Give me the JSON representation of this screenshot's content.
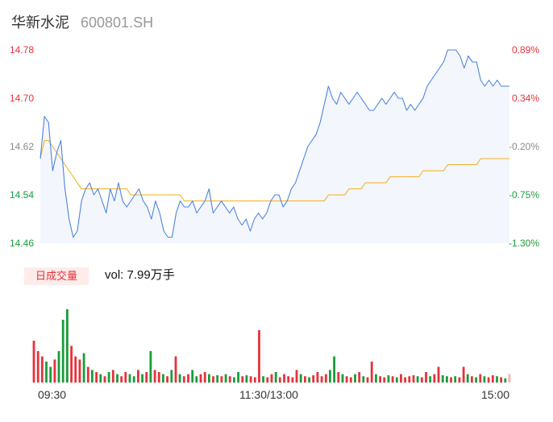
{
  "header": {
    "name": "华新水泥",
    "code": "600801.SH"
  },
  "volume_panel": {
    "badge": "日成交量",
    "volume_text": "vol: 7.99万手"
  },
  "chart_data": {
    "type": "line",
    "price_axis": {
      "ylim": [
        14.46,
        14.78
      ],
      "ticks": [
        "14.78",
        "14.70",
        "14.62",
        "14.54",
        "14.46"
      ],
      "pct_ticks": [
        "0.89%",
        "0.34%",
        "-0.20%",
        "-0.75%",
        "-1.30%"
      ],
      "prev_close": 14.62
    },
    "x_ticks": [
      "09:30",
      "11:30/13:00",
      "15:00"
    ],
    "colors": {
      "price_line": "#4c84e0",
      "avg_line": "#f0b020",
      "area_fill": "#f3f6fc",
      "up": "#e8313a",
      "down": "#1a9c3a",
      "flat": "#8a8a8a"
    },
    "series": [
      {
        "values": [
          14.6,
          14.67,
          14.66,
          14.58,
          14.61,
          14.63,
          14.55,
          14.5,
          14.47,
          14.48,
          14.53,
          14.55,
          14.56,
          14.54,
          14.55,
          14.53,
          14.51,
          14.55,
          14.53,
          14.56,
          14.53,
          14.52,
          14.53,
          14.54,
          14.55,
          14.53,
          14.52,
          14.5,
          14.53,
          14.51,
          14.48,
          14.47,
          14.47,
          14.51,
          14.53,
          14.52,
          14.52,
          14.53,
          14.51,
          14.52,
          14.53,
          14.55,
          14.51,
          14.52,
          14.53,
          14.52,
          14.51,
          14.52,
          14.5,
          14.49,
          14.5,
          14.48,
          14.5,
          14.51,
          14.5,
          14.51,
          14.53,
          14.54,
          14.54,
          14.52,
          14.53,
          14.55,
          14.56,
          14.58,
          14.6,
          14.62,
          14.63,
          14.64,
          14.66,
          14.69,
          14.72,
          14.7,
          14.69,
          14.71,
          14.7,
          14.69,
          14.7,
          14.71,
          14.7,
          14.69,
          14.68,
          14.68,
          14.69,
          14.7,
          14.69,
          14.7,
          14.71,
          14.7,
          14.7,
          14.68,
          14.69,
          14.68,
          14.69,
          14.7,
          14.72,
          14.73,
          14.74,
          14.75,
          14.76,
          14.78,
          14.78,
          14.78,
          14.77,
          14.75,
          14.77,
          14.76,
          14.76,
          14.73,
          14.72,
          14.73,
          14.72,
          14.73,
          14.72,
          14.72,
          14.72
        ],
        "color": "#4c84e0"
      },
      {
        "values": [
          14.6,
          14.63,
          14.63,
          14.62,
          14.61,
          14.6,
          14.59,
          14.58,
          14.57,
          14.56,
          14.55,
          14.55,
          14.55,
          14.55,
          14.55,
          14.55,
          14.55,
          14.55,
          14.55,
          14.55,
          14.55,
          14.55,
          14.54,
          14.54,
          14.54,
          14.54,
          14.54,
          14.54,
          14.54,
          14.54,
          14.54,
          14.54,
          14.54,
          14.54,
          14.54,
          14.53,
          14.53,
          14.53,
          14.53,
          14.53,
          14.53,
          14.53,
          14.53,
          14.53,
          14.53,
          14.53,
          14.53,
          14.53,
          14.53,
          14.53,
          14.53,
          14.53,
          14.53,
          14.53,
          14.53,
          14.53,
          14.53,
          14.53,
          14.53,
          14.53,
          14.53,
          14.53,
          14.53,
          14.53,
          14.53,
          14.53,
          14.53,
          14.53,
          14.53,
          14.53,
          14.54,
          14.54,
          14.54,
          14.54,
          14.54,
          14.55,
          14.55,
          14.55,
          14.55,
          14.56,
          14.56,
          14.56,
          14.56,
          14.56,
          14.56,
          14.57,
          14.57,
          14.57,
          14.57,
          14.57,
          14.57,
          14.57,
          14.57,
          14.58,
          14.58,
          14.58,
          14.58,
          14.58,
          14.58,
          14.59,
          14.59,
          14.59,
          14.59,
          14.59,
          14.59,
          14.59,
          14.59,
          14.6,
          14.6,
          14.6,
          14.6,
          14.6,
          14.6,
          14.6,
          14.6
        ],
        "color": "#f0b020"
      }
    ],
    "volume": {
      "values": [
        40,
        30,
        25,
        20,
        15,
        22,
        30,
        60,
        70,
        35,
        25,
        22,
        28,
        15,
        12,
        10,
        8,
        6,
        10,
        12,
        8,
        6,
        10,
        8,
        6,
        12,
        8,
        10,
        30,
        12,
        10,
        8,
        6,
        12,
        25,
        8,
        6,
        8,
        12,
        6,
        8,
        10,
        8,
        6,
        7,
        6,
        8,
        6,
        5,
        10,
        6,
        7,
        6,
        5,
        50,
        6,
        5,
        8,
        10,
        5,
        8,
        6,
        5,
        12,
        8,
        6,
        5,
        7,
        10,
        6,
        8,
        12,
        25,
        10,
        8,
        6,
        5,
        8,
        10,
        6,
        5,
        20,
        8,
        6,
        5,
        7,
        6,
        5,
        8,
        5,
        6,
        7,
        6,
        5,
        10,
        6,
        8,
        15,
        7,
        6,
        5,
        6,
        5,
        15,
        8,
        6,
        5,
        8,
        6,
        5,
        7,
        6,
        5,
        4,
        8
      ],
      "up": [
        true,
        true,
        true,
        false,
        false,
        true,
        false,
        false,
        false,
        true,
        true,
        true,
        false,
        true,
        false,
        true,
        false,
        true,
        false,
        true,
        false,
        true,
        true,
        false,
        false,
        true,
        false,
        true,
        false,
        true,
        true,
        false,
        true,
        false,
        true,
        false,
        true,
        true,
        false,
        false,
        true,
        true,
        false,
        true,
        false,
        true,
        false,
        true,
        false,
        false,
        true,
        false,
        true,
        true,
        true,
        false,
        true,
        true,
        false,
        true,
        true,
        true,
        true,
        true,
        false,
        true,
        false,
        true,
        true,
        true,
        true,
        false,
        false,
        true,
        false,
        true,
        true,
        false,
        true,
        false,
        true,
        true,
        false,
        true,
        true,
        false,
        true,
        false,
        true,
        true,
        true,
        true,
        false,
        true,
        true,
        false,
        true,
        true,
        false,
        false,
        true,
        false,
        true,
        true,
        false,
        true,
        false,
        true,
        false,
        true,
        true,
        false,
        true,
        false,
        false
      ],
      "flat_last": true
    }
  }
}
